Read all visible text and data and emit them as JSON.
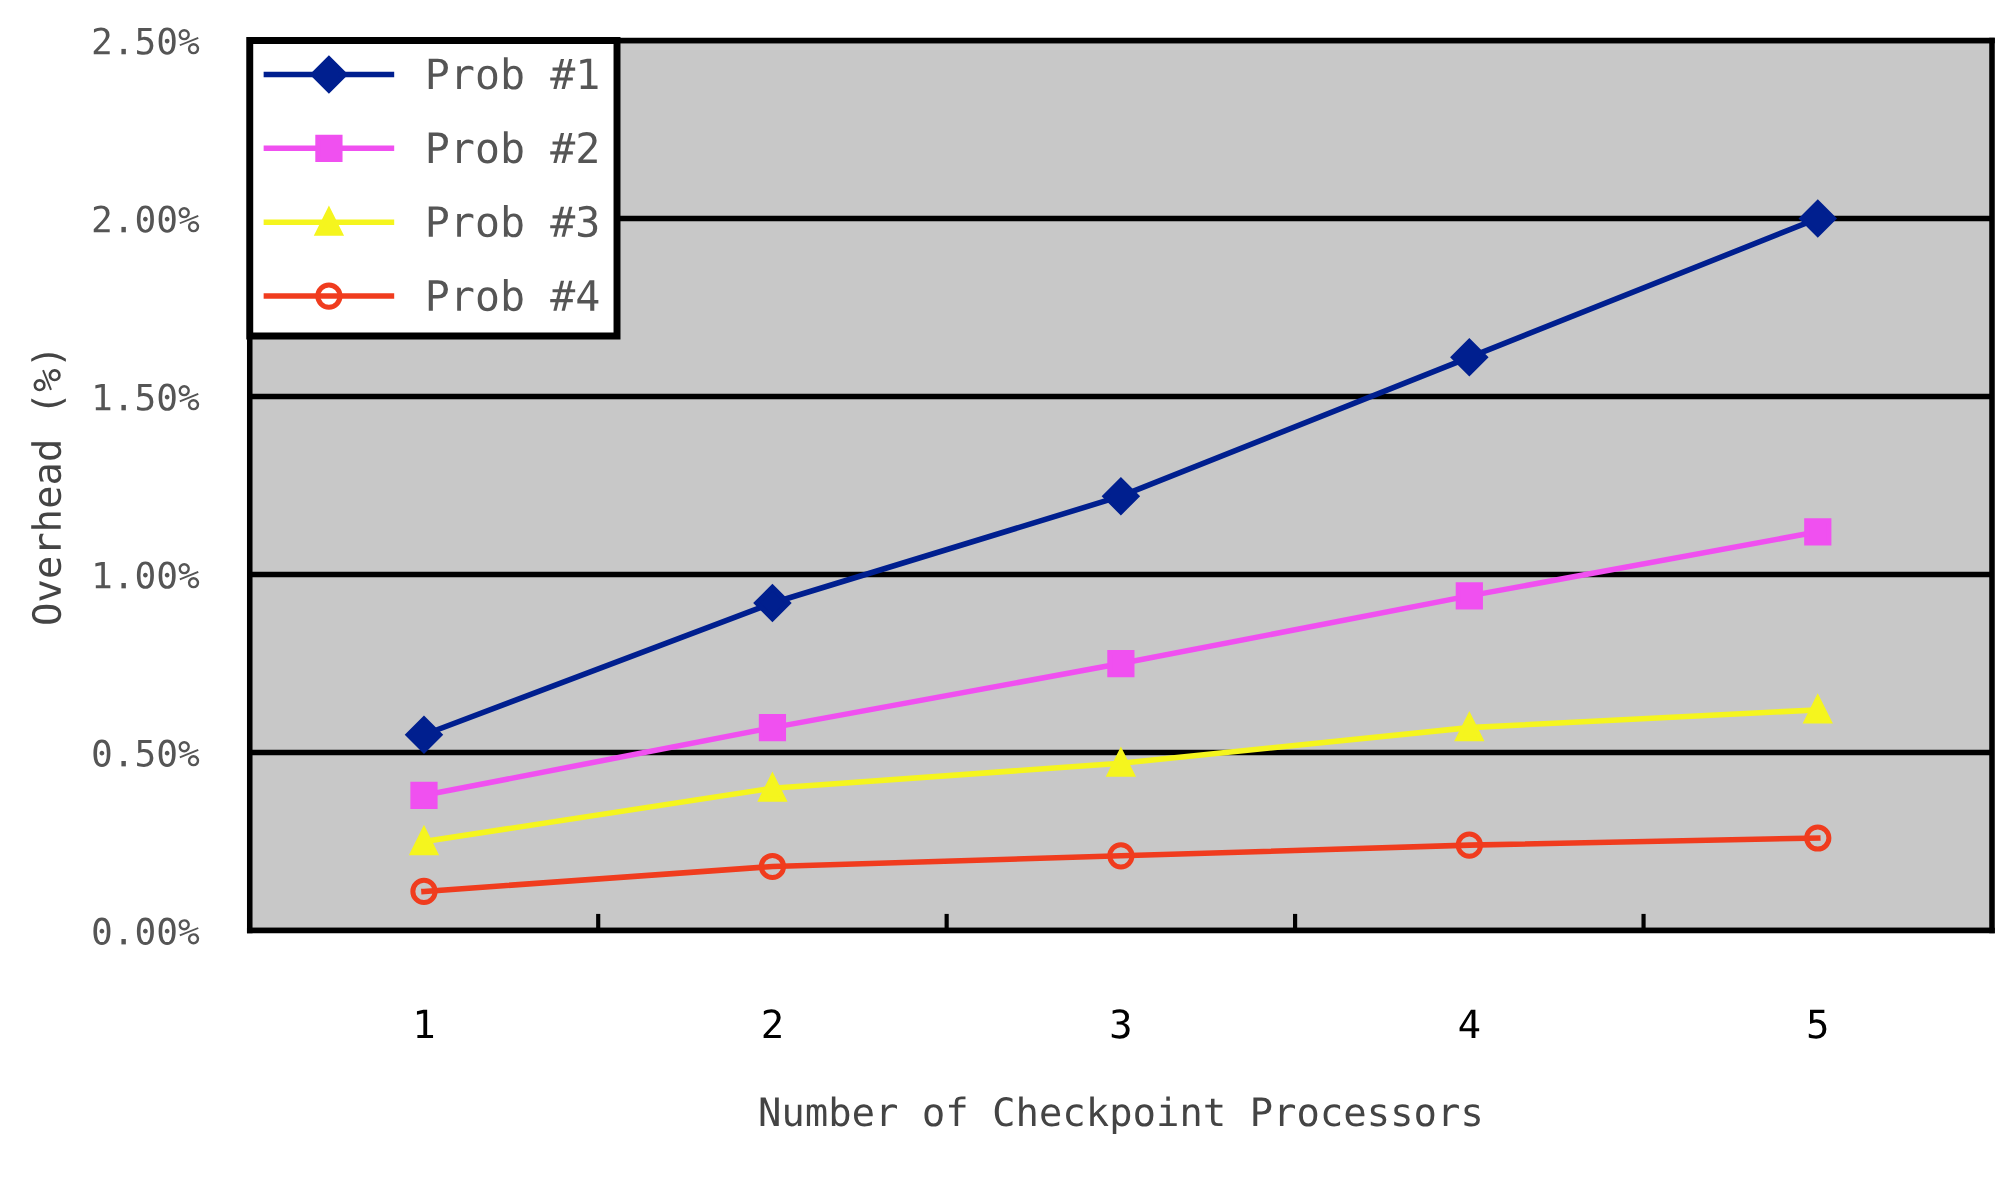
{
  "chart_data": {
    "type": "line",
    "xlabel": "Number of Checkpoint Processors",
    "ylabel": "Overhead (%)",
    "categories": [
      "1",
      "2",
      "3",
      "4",
      "5"
    ],
    "series": [
      {
        "name": "Prob #1",
        "color": "#001f8f",
        "marker": "diamond",
        "values": [
          0.55,
          0.92,
          1.22,
          1.61,
          2.0
        ]
      },
      {
        "name": "Prob #2",
        "color": "#f050f0",
        "marker": "square",
        "values": [
          0.38,
          0.57,
          0.75,
          0.94,
          1.12
        ]
      },
      {
        "name": "Prob #3",
        "color": "#f5f51e",
        "marker": "triangle",
        "values": [
          0.25,
          0.4,
          0.47,
          0.57,
          0.62
        ]
      },
      {
        "name": "Prob #4",
        "color": "#f03c1e",
        "marker": "circle",
        "values": [
          0.11,
          0.18,
          0.21,
          0.24,
          0.26
        ]
      }
    ],
    "ylim": [
      0,
      2.5
    ],
    "yticks": [
      {
        "value": 0,
        "label": "0.00%"
      },
      {
        "value": 0.5,
        "label": "0.50%"
      },
      {
        "value": 1.0,
        "label": "1.00%"
      },
      {
        "value": 1.5,
        "label": "1.50%"
      },
      {
        "value": 2.0,
        "label": "2.00%"
      },
      {
        "value": 2.5,
        "label": "2.50%"
      }
    ],
    "grid": "y",
    "legend": "top left"
  }
}
